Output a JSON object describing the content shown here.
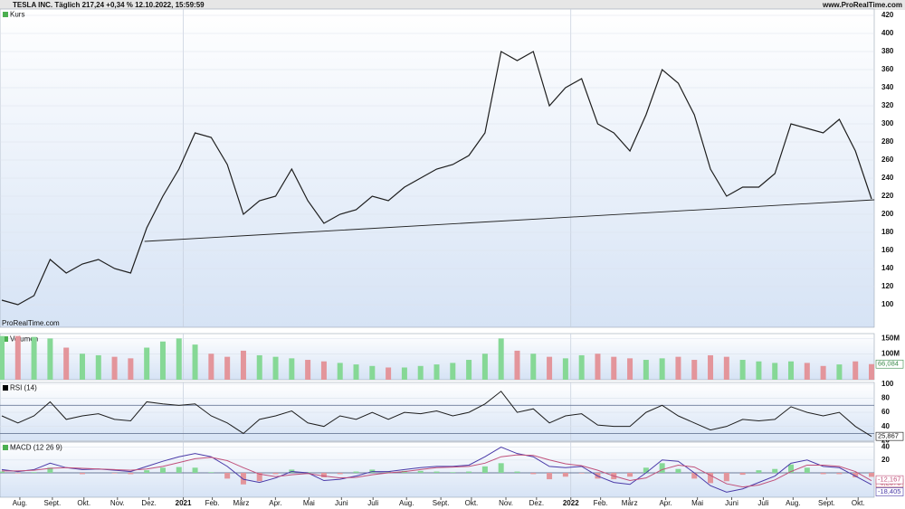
{
  "header": {
    "title": "TESLA INC. Täglich 217,24 +0,34 % 12.10.2022, 15:59:59",
    "site": "www.ProRealTime.com"
  },
  "chart_data": [
    {
      "type": "line",
      "legend": "Kurs",
      "watermark": "ProRealTime.com",
      "series": [
        {
          "name": "Kurs",
          "color": "#1e1e1e",
          "values": [
            105,
            100,
            110,
            150,
            135,
            145,
            150,
            140,
            135,
            185,
            220,
            250,
            290,
            285,
            255,
            200,
            215,
            220,
            250,
            215,
            190,
            200,
            205,
            220,
            215,
            230,
            240,
            250,
            255,
            265,
            290,
            380,
            370,
            380,
            320,
            340,
            350,
            300,
            290,
            270,
            310,
            360,
            345,
            310,
            250,
            220,
            230,
            230,
            245,
            300,
            295,
            290,
            305,
            270,
            217
          ]
        }
      ],
      "trendline": {
        "x": [
          8.86,
          54.18
        ],
        "values": [
          170,
          216
        ]
      },
      "ylim": [
        75,
        425
      ],
      "yticks": [
        100,
        120,
        140,
        160,
        180,
        200,
        220,
        240,
        260,
        280,
        300,
        320,
        340,
        360,
        380,
        400,
        420
      ]
    },
    {
      "type": "bar",
      "legend": "Volumen",
      "up_color": "#86d896",
      "down_color": "#e3959b",
      "values": [
        158,
        158,
        155,
        150,
        120,
        100,
        95,
        90,
        85,
        120,
        140,
        150,
        130,
        100,
        90,
        110,
        95,
        90,
        85,
        80,
        75,
        70,
        65,
        60,
        55,
        55,
        60,
        65,
        70,
        80,
        100,
        150,
        110,
        100,
        90,
        85,
        95,
        100,
        90,
        85,
        80,
        85,
        90,
        80,
        95,
        90,
        80,
        75,
        70,
        75,
        70,
        60,
        65,
        75,
        66.084
      ],
      "last_label": "66,084",
      "ylim": [
        15,
        160
      ],
      "yticks": [
        {
          "value": 100,
          "label": "100M"
        },
        {
          "value": 150,
          "label": "150M"
        }
      ]
    },
    {
      "type": "line",
      "legend": "RSI (14)",
      "color": "#1e1e1e",
      "values": [
        55,
        45,
        55,
        75,
        50,
        55,
        58,
        50,
        48,
        75,
        72,
        70,
        72,
        55,
        45,
        30,
        50,
        55,
        62,
        45,
        40,
        55,
        50,
        60,
        50,
        60,
        58,
        62,
        55,
        60,
        72,
        90,
        60,
        65,
        45,
        55,
        58,
        42,
        40,
        40,
        60,
        70,
        55,
        45,
        35,
        40,
        50,
        48,
        50,
        68,
        60,
        55,
        60,
        40,
        25.867
      ],
      "last_label": "25,867",
      "levels": [
        30,
        70
      ],
      "ylim": [
        19,
        100
      ],
      "yticks": [
        20,
        40,
        60,
        80,
        100
      ]
    },
    {
      "type": "line",
      "legend": "MACD (12 26 9)",
      "series": [
        {
          "color": "#4a3aa8",
          "values": [
            5,
            2,
            5,
            15,
            8,
            5,
            6,
            4,
            2,
            10,
            18,
            25,
            30,
            25,
            10,
            -10,
            -15,
            -8,
            2,
            0,
            -12,
            -10,
            -5,
            2,
            2,
            5,
            8,
            10,
            10,
            12,
            25,
            40,
            30,
            25,
            10,
            8,
            10,
            -5,
            -15,
            -18,
            0,
            20,
            18,
            0,
            -20,
            -30,
            -25,
            -15,
            -5,
            15,
            20,
            10,
            8,
            -5,
            -18.405
          ],
          "last_label": "-18,405"
        },
        {
          "color": "#c0507a",
          "values": [
            3,
            3,
            4,
            7,
            8,
            7,
            6,
            5,
            4,
            6,
            10,
            16,
            22,
            24,
            19,
            8,
            -2,
            -6,
            -3,
            -1,
            -5,
            -8,
            -7,
            -3,
            0,
            2,
            5,
            8,
            9,
            10,
            15,
            25,
            28,
            27,
            20,
            14,
            11,
            4,
            -5,
            -12,
            -8,
            5,
            12,
            9,
            -4,
            -17,
            -22,
            -19,
            -11,
            2,
            12,
            12,
            10,
            2,
            -12.167
          ],
          "last_label": "-12,167"
        },
        {
          "type": "bar",
          "color": "#86d896",
          "down_color": "#e3959b",
          "values": [
            2,
            -1,
            1,
            8,
            0,
            -2,
            0,
            -1,
            -2,
            4,
            8,
            9,
            8,
            1,
            -9,
            -18,
            -13,
            -2,
            5,
            1,
            -7,
            -2,
            2,
            5,
            2,
            3,
            3,
            2,
            1,
            2,
            10,
            15,
            2,
            -2,
            -10,
            -6,
            -1,
            -9,
            -10,
            -6,
            8,
            15,
            6,
            -9,
            -16,
            -13,
            -3,
            4,
            6,
            13,
            8,
            -2,
            -2,
            -7,
            -6.2375
          ],
          "last_label": "-6,2375"
        }
      ],
      "ylim": [
        -38,
        45
      ],
      "yticks": [
        20,
        40
      ],
      "xlim": [
        0,
        54
      ],
      "xticks": [
        {
          "value": 1.12,
          "label": "Aug."
        },
        {
          "value": 3.14,
          "label": "Sept."
        },
        {
          "value": 5.1,
          "label": "Okt."
        },
        {
          "value": 7.18,
          "label": "Nov."
        },
        {
          "value": 9.14,
          "label": "Dez."
        },
        {
          "value": 11.27,
          "label": "2021"
        },
        {
          "value": 13.07,
          "label": "Feb."
        },
        {
          "value": 14.86,
          "label": "März"
        },
        {
          "value": 16.99,
          "label": "Apr."
        },
        {
          "value": 19.07,
          "label": "Mai"
        },
        {
          "value": 21.09,
          "label": "Juni"
        },
        {
          "value": 23.05,
          "label": "Juli"
        },
        {
          "value": 25.13,
          "label": "Aug."
        },
        {
          "value": 27.26,
          "label": "Sept."
        },
        {
          "value": 29.16,
          "label": "Okt."
        },
        {
          "value": 31.3,
          "label": "Nov."
        },
        {
          "value": 33.2,
          "label": "Dez."
        },
        {
          "value": 35.33,
          "label": "2022"
        },
        {
          "value": 37.18,
          "label": "Feb."
        },
        {
          "value": 38.98,
          "label": "März"
        },
        {
          "value": 41.22,
          "label": "Apr."
        },
        {
          "value": 43.19,
          "label": "Mai"
        },
        {
          "value": 45.32,
          "label": "Juni"
        },
        {
          "value": 47.28,
          "label": "Juli"
        },
        {
          "value": 49.13,
          "label": "Aug."
        },
        {
          "value": 51.21,
          "label": "Sept."
        },
        {
          "value": 53.17,
          "label": "Okt."
        }
      ]
    }
  ]
}
